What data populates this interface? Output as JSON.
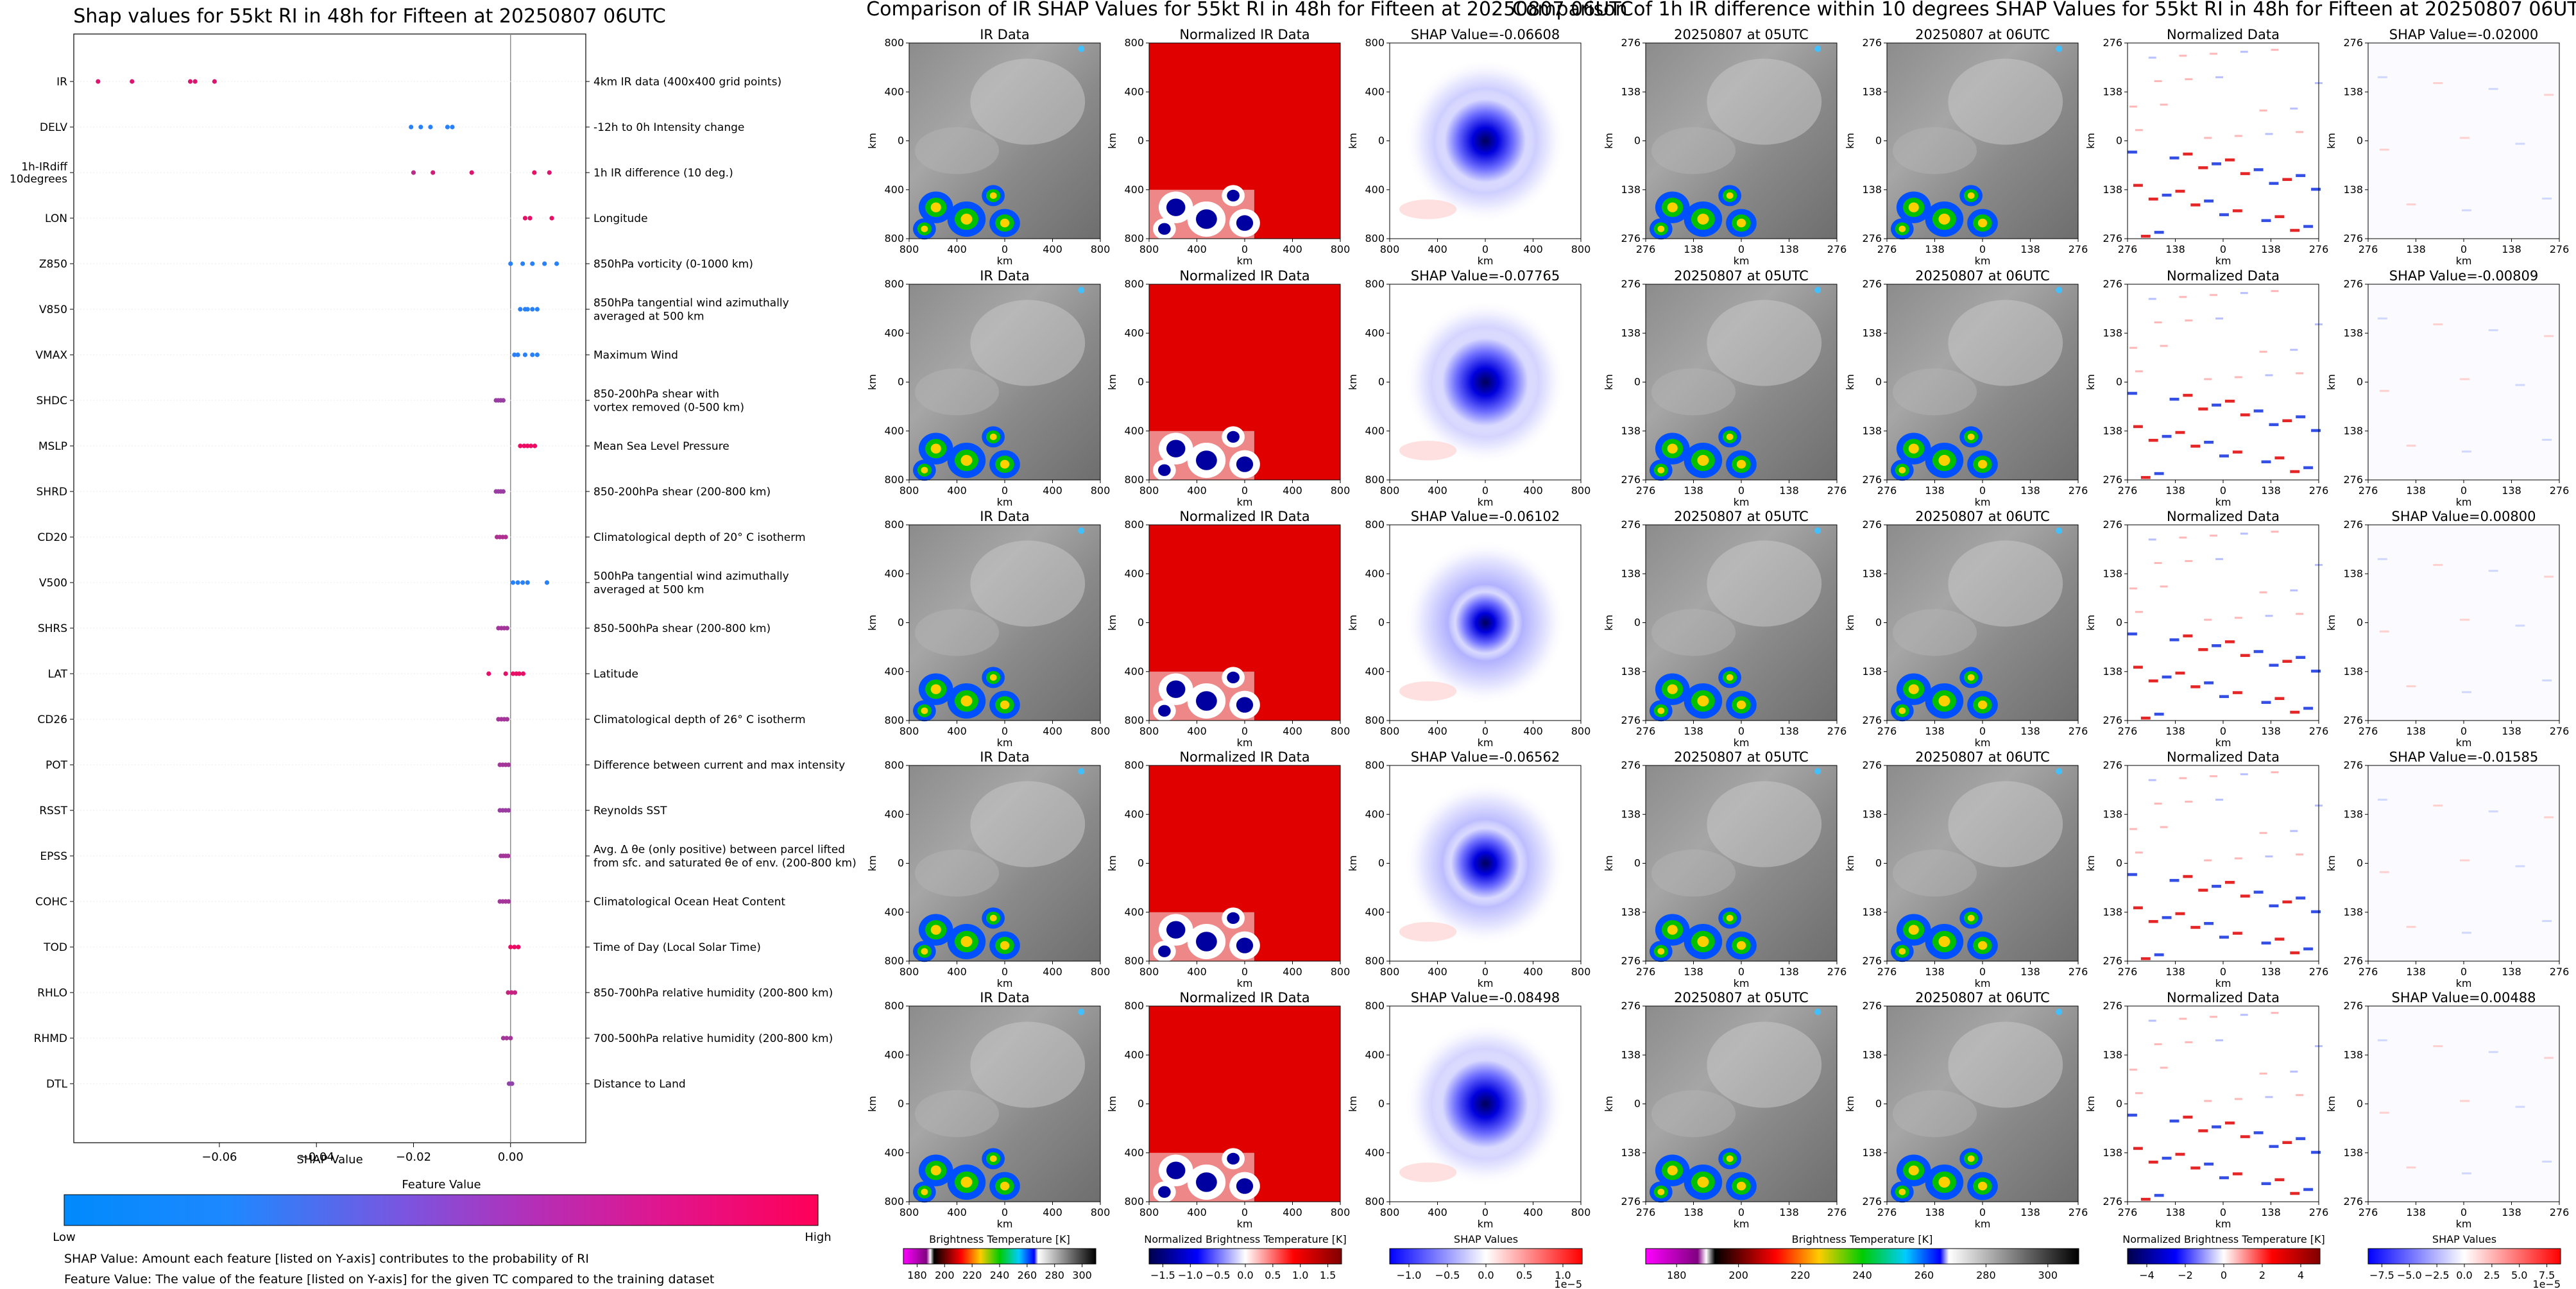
{
  "shap_panel": {
    "title": "Shap values for 55kt RI in 48h for Fifteen at 20250807 06UTC",
    "xlabel": "SHAP Value",
    "colorbar_title": "Feature Value",
    "colorbar_low": "Low",
    "colorbar_high": "High",
    "note1": "SHAP Value: Amount each feature [listed on Y-axis] contributes to the probability of RI",
    "note2": "Feature Value: The value of the feature [listed on Y-axis] for the given TC compared to the training dataset"
  },
  "ir_section": {
    "title": "Comparison of IR SHAP Values for 55kt RI in 48h for Fifteen at 20250807 06UTC",
    "col_titles": [
      "IR Data",
      "Normalized IR Data"
    ],
    "shap_titles": [
      "SHAP Value=-0.06608",
      "SHAP Value=-0.07765",
      "SHAP Value=-0.06102",
      "SHAP Value=-0.06562",
      "SHAP Value=-0.08498"
    ],
    "ticks": [
      "800",
      "400",
      "0",
      "400",
      "800"
    ],
    "axis_label": "km",
    "colorbars": [
      {
        "label": "Brightness Temperature [K]",
        "ticks": [
          "180",
          "200",
          "220",
          "240",
          "260",
          "280",
          "300"
        ],
        "exponent": ""
      },
      {
        "label": "Normalized Brightness Temperature [K]",
        "ticks": [
          "−1.5",
          "−1.0",
          "−0.5",
          "0.0",
          "0.5",
          "1.0",
          "1.5"
        ],
        "exponent": ""
      },
      {
        "label": "SHAP Values",
        "ticks": [
          "−1.0",
          "−0.5",
          "0.0",
          "0.5",
          "1.0"
        ],
        "exponent": "1e−5"
      }
    ]
  },
  "diff_section": {
    "title": "Comparison of 1h IR difference within 10 degrees SHAP Values for 55kt RI in 48h for Fifteen at 20250807 06UTC",
    "col_titles": [
      "20250807 at 05UTC",
      "20250807 at 06UTC",
      "Normalized Data"
    ],
    "shap_titles": [
      "SHAP Value=-0.02000",
      "SHAP Value=-0.00809",
      "SHAP Value=0.00800",
      "SHAP Value=-0.01585",
      "SHAP Value=0.00488"
    ],
    "ticks": [
      "276",
      "138",
      "0",
      "138",
      "276"
    ],
    "axis_label": "km",
    "colorbars": [
      {
        "label": "Brightness Temperature [K]",
        "ticks": [
          "180",
          "200",
          "220",
          "240",
          "260",
          "280",
          "300"
        ],
        "exponent": ""
      },
      {
        "label": "Normalized Brightness Temperature [K]",
        "ticks": [
          "−4",
          "−2",
          "0",
          "2",
          "4"
        ],
        "exponent": ""
      },
      {
        "label": "SHAP Values",
        "ticks": [
          "−7.5",
          "−5.0",
          "−2.5",
          "0.0",
          "2.5",
          "5.0",
          "7.5"
        ],
        "exponent": "1e−5"
      }
    ]
  },
  "chart_data": {
    "type": "scatter",
    "title": "Shap values for 55kt RI in 48h for Fifteen at 20250807 06UTC",
    "xlabel": "SHAP Value",
    "xlim": [
      -0.09,
      0.0155
    ],
    "xticks": [
      -0.06,
      -0.04,
      -0.02,
      0.0
    ],
    "xtick_labels": [
      "−0.06",
      "−0.04",
      "−0.02",
      "0.00"
    ],
    "colors": {
      "low": "#1e88ff",
      "high": "#ff0055"
    },
    "features": [
      {
        "name": "IR",
        "desc": [
          "4km IR data (400x400 grid points)"
        ],
        "points": [
          [
            -0.085,
            0.85
          ],
          [
            -0.078,
            0.85
          ],
          [
            -0.066,
            0.85
          ],
          [
            -0.065,
            0.85
          ],
          [
            -0.061,
            0.85
          ]
        ]
      },
      {
        "name": "DELV",
        "desc": [
          "-12h to 0h Intensity change"
        ],
        "points": [
          [
            -0.0205,
            0.05
          ],
          [
            -0.0185,
            0.05
          ],
          [
            -0.0165,
            0.05
          ],
          [
            -0.013,
            0.05
          ],
          [
            -0.012,
            0.05
          ]
        ]
      },
      {
        "name": "1h-IRdiff\n10degrees",
        "desc": [
          "1h IR difference (10 deg.)"
        ],
        "points": [
          [
            -0.02,
            0.7
          ],
          [
            -0.016,
            0.8
          ],
          [
            -0.008,
            0.85
          ],
          [
            0.0049,
            0.9
          ],
          [
            0.008,
            0.85
          ]
        ]
      },
      {
        "name": "LON",
        "desc": [
          "Longitude"
        ],
        "points": [
          [
            0.003,
            0.9
          ],
          [
            0.004,
            0.9
          ],
          [
            0.0085,
            0.9
          ]
        ]
      },
      {
        "name": "Z850",
        "desc": [
          "850hPa vorticity (0-1000 km)"
        ],
        "points": [
          [
            0.0,
            0.05
          ],
          [
            0.0025,
            0.05
          ],
          [
            0.0045,
            0.05
          ],
          [
            0.007,
            0.05
          ],
          [
            0.0095,
            0.05
          ]
        ]
      },
      {
        "name": "V850",
        "desc": [
          "850hPa tangential wind azimuthally",
          "averaged at 500 km"
        ],
        "points": [
          [
            0.002,
            0.05
          ],
          [
            0.003,
            0.05
          ],
          [
            0.0035,
            0.05
          ],
          [
            0.0045,
            0.05
          ],
          [
            0.0055,
            0.05
          ]
        ]
      },
      {
        "name": "VMAX",
        "desc": [
          "Maximum Wind"
        ],
        "points": [
          [
            0.0008,
            0.05
          ],
          [
            0.0015,
            0.05
          ],
          [
            0.003,
            0.05
          ],
          [
            0.0045,
            0.05
          ],
          [
            0.0055,
            0.05
          ]
        ]
      },
      {
        "name": "SHDC",
        "desc": [
          "850-200hPa shear with",
          "vortex removed (0-500 km)"
        ],
        "points": [
          [
            -0.003,
            0.55
          ],
          [
            -0.0025,
            0.55
          ],
          [
            -0.002,
            0.55
          ],
          [
            -0.0015,
            0.55
          ]
        ]
      },
      {
        "name": "MSLP",
        "desc": [
          "Mean Sea Level Pressure"
        ],
        "points": [
          [
            0.002,
            0.92
          ],
          [
            0.0028,
            0.92
          ],
          [
            0.0035,
            0.92
          ],
          [
            0.0042,
            0.92
          ],
          [
            0.005,
            0.92
          ]
        ]
      },
      {
        "name": "SHRD",
        "desc": [
          "850-200hPa shear (200-800 km)"
        ],
        "points": [
          [
            -0.003,
            0.55
          ],
          [
            -0.0025,
            0.55
          ],
          [
            -0.002,
            0.55
          ],
          [
            -0.0015,
            0.55
          ]
        ]
      },
      {
        "name": "CD20",
        "desc": [
          "Climatological depth of 20° C isotherm"
        ],
        "points": [
          [
            -0.0028,
            0.65
          ],
          [
            -0.0022,
            0.65
          ],
          [
            -0.0016,
            0.65
          ],
          [
            -0.001,
            0.65
          ]
        ]
      },
      {
        "name": "V500",
        "desc": [
          "500hPa tangential wind azimuthally",
          "averaged at 500 km"
        ],
        "points": [
          [
            0.0005,
            0.05
          ],
          [
            0.0015,
            0.05
          ],
          [
            0.0025,
            0.05
          ],
          [
            0.0035,
            0.05
          ],
          [
            0.0075,
            0.05
          ]
        ]
      },
      {
        "name": "SHRS",
        "desc": [
          "850-500hPa shear (200-800 km)"
        ],
        "points": [
          [
            -0.0025,
            0.6
          ],
          [
            -0.0019,
            0.6
          ],
          [
            -0.0013,
            0.6
          ],
          [
            -0.0007,
            0.6
          ]
        ]
      },
      {
        "name": "LAT",
        "desc": [
          "Latitude"
        ],
        "points": [
          [
            -0.0045,
            0.88
          ],
          [
            -0.001,
            0.88
          ],
          [
            0.0005,
            0.9
          ],
          [
            0.0012,
            0.9
          ],
          [
            0.0018,
            0.9
          ],
          [
            0.0026,
            0.9
          ]
        ]
      },
      {
        "name": "CD26",
        "desc": [
          "Climatological depth of 26° C isotherm"
        ],
        "points": [
          [
            -0.0025,
            0.6
          ],
          [
            -0.0019,
            0.6
          ],
          [
            -0.0013,
            0.6
          ],
          [
            -0.0007,
            0.6
          ]
        ]
      },
      {
        "name": "POT",
        "desc": [
          "Difference between current and max intensity"
        ],
        "points": [
          [
            -0.0022,
            0.6
          ],
          [
            -0.0016,
            0.6
          ],
          [
            -0.001,
            0.6
          ],
          [
            -0.0004,
            0.6
          ]
        ]
      },
      {
        "name": "RSST",
        "desc": [
          "Reynolds SST"
        ],
        "points": [
          [
            -0.0022,
            0.55
          ],
          [
            -0.0016,
            0.55
          ],
          [
            -0.001,
            0.55
          ],
          [
            -0.0004,
            0.55
          ]
        ]
      },
      {
        "name": "EPSS",
        "desc": [
          "Avg. Δ θe (only positive) between parcel lifted",
          "from sfc. and saturated θe of env. (200-800 km)"
        ],
        "points": [
          [
            -0.002,
            0.6
          ],
          [
            -0.0015,
            0.6
          ],
          [
            -0.001,
            0.6
          ],
          [
            -0.0005,
            0.6
          ]
        ]
      },
      {
        "name": "COHC",
        "desc": [
          "Climatological Ocean Heat Content"
        ],
        "points": [
          [
            -0.0022,
            0.6
          ],
          [
            -0.0016,
            0.6
          ],
          [
            -0.001,
            0.6
          ],
          [
            -0.0004,
            0.6
          ]
        ]
      },
      {
        "name": "TOD",
        "desc": [
          "Time of Day (Local Solar Time)"
        ],
        "points": [
          [
            0.0,
            0.92
          ],
          [
            0.0008,
            0.92
          ],
          [
            0.0016,
            0.92
          ]
        ]
      },
      {
        "name": "RHLO",
        "desc": [
          "850-700hPa relative humidity (200-800 km)"
        ],
        "points": [
          [
            -0.0005,
            0.75
          ],
          [
            0.0002,
            0.75
          ],
          [
            0.0009,
            0.75
          ]
        ]
      },
      {
        "name": "RHMD",
        "desc": [
          "700-500hPa relative humidity (200-800 km)"
        ],
        "points": [
          [
            -0.0015,
            0.6
          ],
          [
            -0.0008,
            0.6
          ],
          [
            0.0,
            0.6
          ]
        ]
      },
      {
        "name": "DTL",
        "desc": [
          "Distance to Land"
        ],
        "points": [
          [
            -0.0003,
            0.5
          ],
          [
            0.0003,
            0.5
          ]
        ]
      }
    ]
  }
}
